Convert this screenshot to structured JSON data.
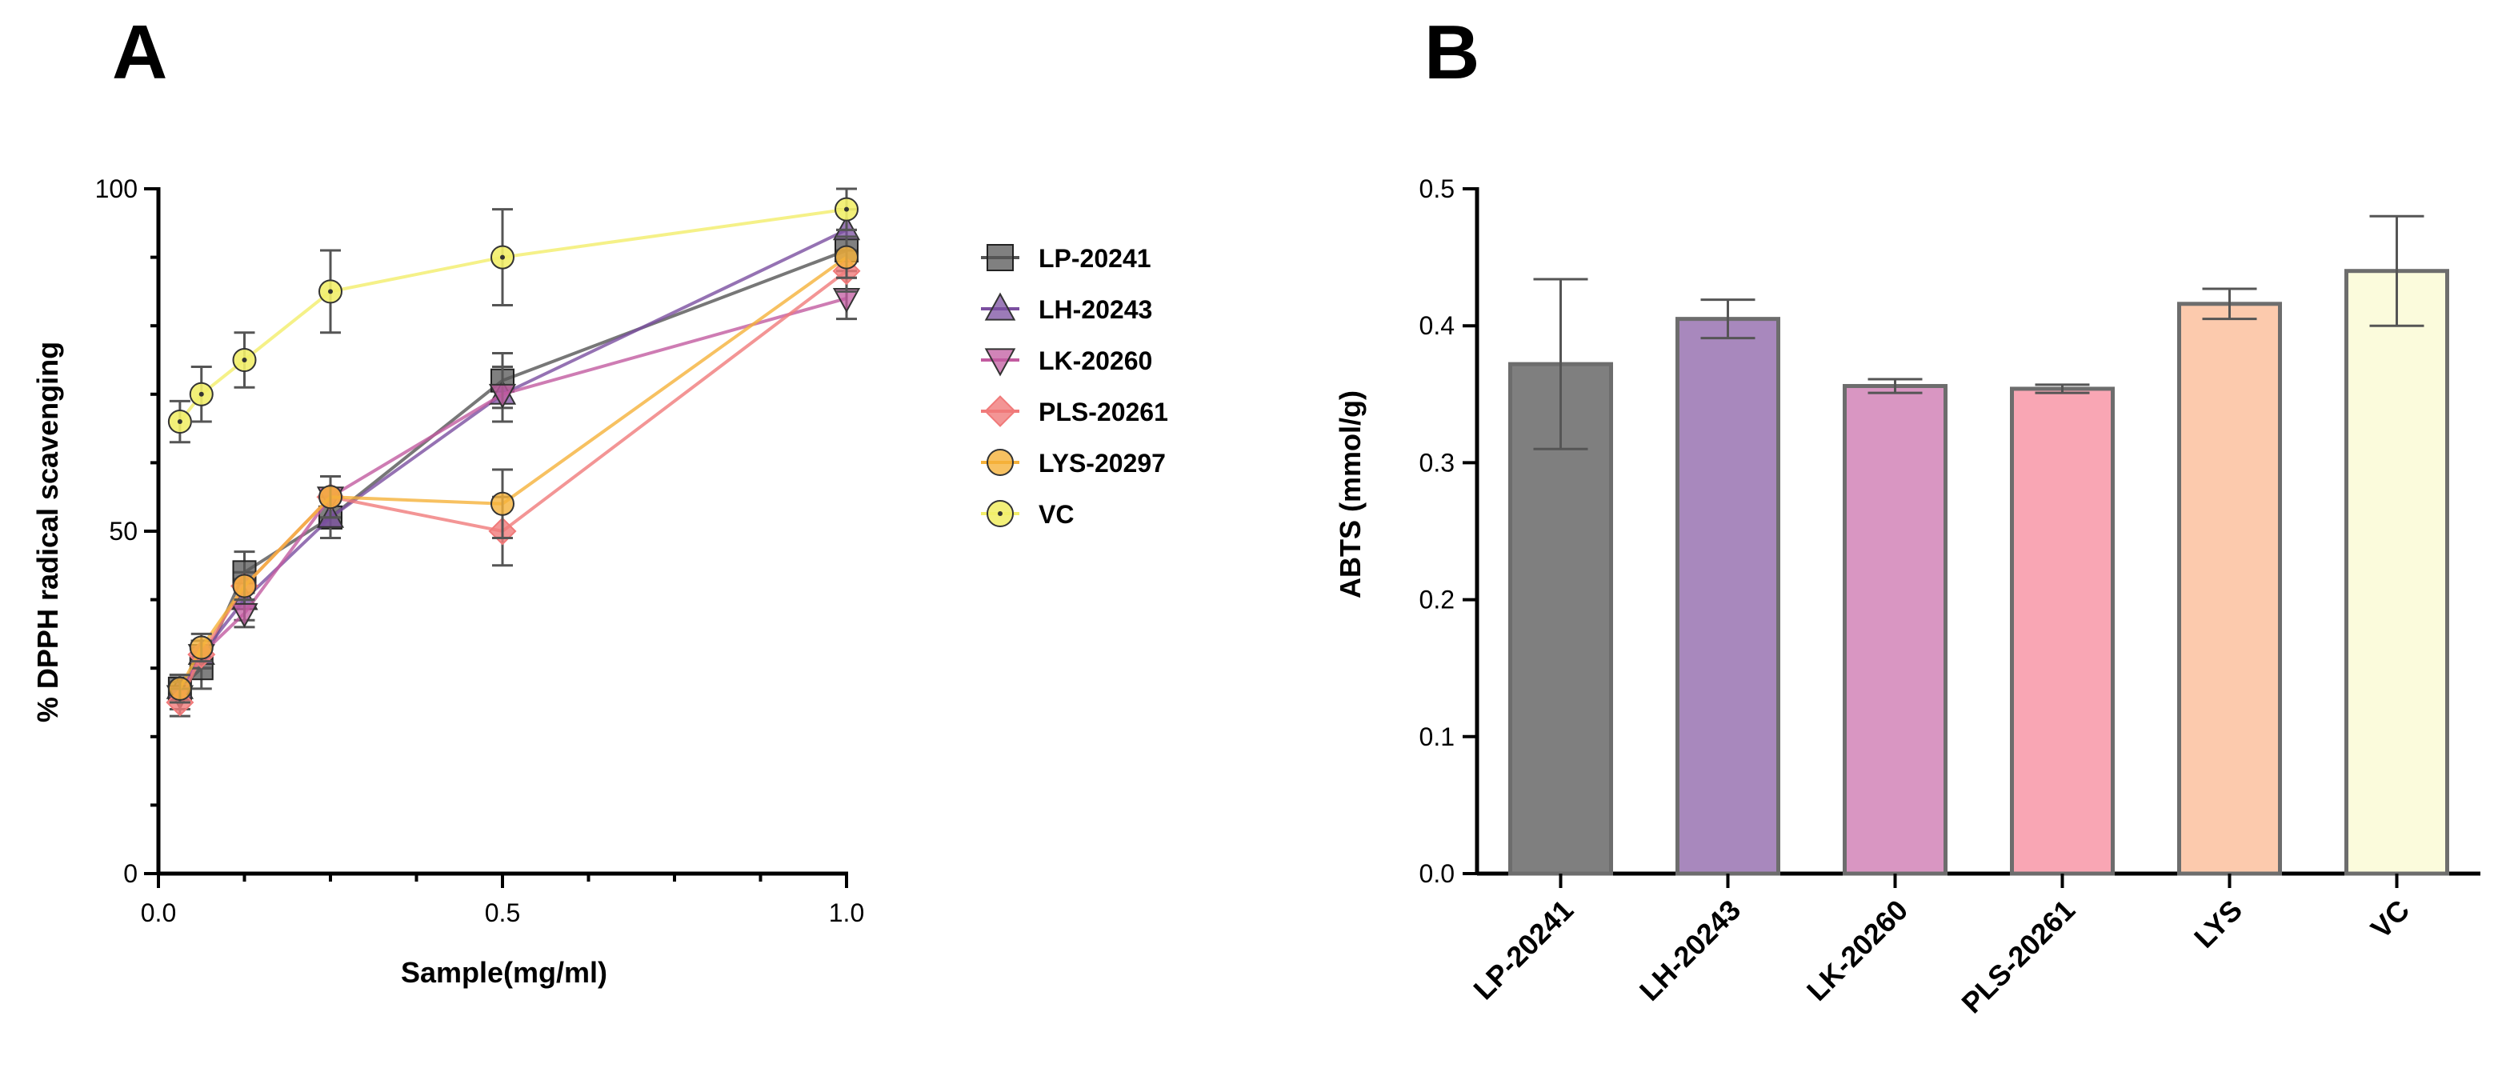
{
  "chart_data": [
    {
      "panel": "A",
      "type": "line",
      "xlabel": "Sample(mg/ml)",
      "ylabel": "% DPPH radical scavenging",
      "xlim": [
        0,
        1.0
      ],
      "ylim": [
        0,
        100
      ],
      "xticks": [
        "0.0",
        "0.5",
        "1.0"
      ],
      "yticks": [
        "0",
        "50",
        "100"
      ],
      "x": [
        0.03125,
        0.0625,
        0.125,
        0.25,
        0.5,
        1.0
      ],
      "legend_position": "right",
      "series": [
        {
          "name": "LP-20241",
          "color": "#555555",
          "marker": "square",
          "values": [
            27,
            30,
            44,
            52,
            72,
            91
          ],
          "errors": [
            2,
            3,
            3,
            3,
            4,
            3
          ]
        },
        {
          "name": "LH-20243",
          "color": "#7b4fa0",
          "marker": "triangle-up",
          "values": [
            27,
            32,
            40,
            52,
            70,
            94
          ],
          "errors": [
            2,
            2,
            3,
            3,
            4,
            3
          ]
        },
        {
          "name": "LK-20260",
          "color": "#c25ba0",
          "marker": "triangle-down",
          "values": [
            26,
            32,
            38,
            55,
            70,
            84
          ],
          "errors": [
            2,
            2,
            2,
            3,
            4,
            3
          ]
        },
        {
          "name": "PLS-20261",
          "color": "#f07a7a",
          "marker": "diamond",
          "values": [
            25,
            32,
            42,
            55,
            50,
            88
          ],
          "errors": [
            2,
            2,
            2,
            3,
            5,
            3
          ]
        },
        {
          "name": "LYS-20297",
          "color": "#f5b13a",
          "marker": "circle",
          "values": [
            27,
            33,
            42,
            55,
            54,
            90
          ],
          "errors": [
            2,
            2,
            2,
            3,
            5,
            3
          ]
        },
        {
          "name": "VC",
          "color": "#f2ee6a",
          "marker": "circle-dot",
          "values": [
            66,
            70,
            75,
            85,
            90,
            97
          ],
          "errors": [
            3,
            4,
            4,
            6,
            7,
            3
          ]
        }
      ]
    },
    {
      "panel": "B",
      "type": "bar",
      "ylabel": "ABTS (mmol/g)",
      "ylim": [
        0,
        0.5
      ],
      "yticks": [
        "0.0",
        "0.1",
        "0.2",
        "0.3",
        "0.4",
        "0.5"
      ],
      "categories": [
        "LP-20241",
        "LH-20243",
        "LK-20260",
        "PLS-20261",
        "LYS",
        "VC"
      ],
      "values": [
        0.372,
        0.405,
        0.356,
        0.354,
        0.416,
        0.44
      ],
      "errors": [
        0.062,
        0.014,
        0.005,
        0.003,
        0.011,
        0.04
      ],
      "colors": [
        "#7f7f7f",
        "#a888bd",
        "#d996c2",
        "#f9a6b4",
        "#fccaad",
        "#fbfbdc"
      ]
    }
  ]
}
